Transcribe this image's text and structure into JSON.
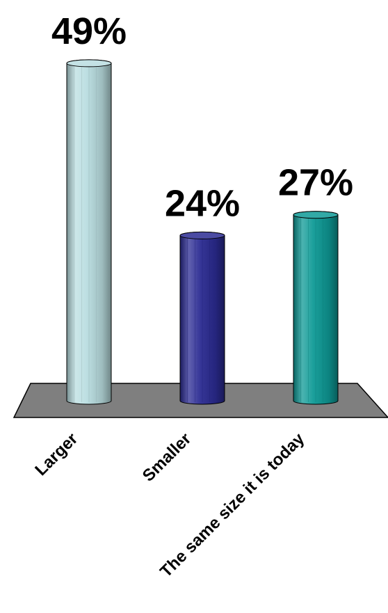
{
  "chart_data": {
    "type": "bar",
    "style": "3d-cylinder",
    "categories": [
      "Larger",
      "Smaller",
      "The same size it is today"
    ],
    "values": [
      49,
      24,
      27
    ],
    "data_labels": [
      "49%",
      "24%",
      "27%"
    ],
    "colors": [
      "#b9dde0",
      "#2b2b93",
      "#0e9a96"
    ],
    "floor_color": "#7f7f7f",
    "title": "",
    "xlabel": "",
    "ylabel": "",
    "ylim": [
      0,
      49
    ],
    "grid": false,
    "legend": "none"
  }
}
